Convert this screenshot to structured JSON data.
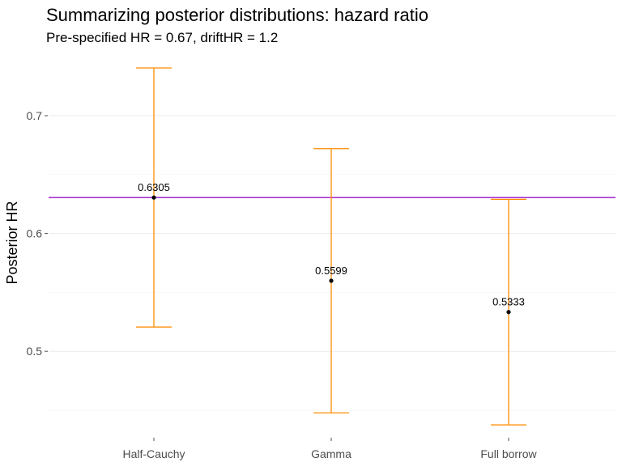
{
  "chart_data": {
    "type": "errorbar",
    "title": "Summarizing posterior distributions: hazard ratio",
    "subtitle": "Pre-specified HR = 0.67, driftHR = 1.2",
    "xlabel": "",
    "ylabel": "Posterior HR",
    "categories": [
      "Half-Cauchy",
      "Gamma",
      "Full borrow"
    ],
    "series": [
      {
        "values": [
          0.6305,
          0.5599,
          0.5333
        ],
        "lower": [
          0.5206,
          0.4477,
          0.4375
        ],
        "upper": [
          0.7405,
          0.672,
          0.629
        ],
        "value_labels": [
          "0.6305",
          "0.5599",
          "0.5333"
        ]
      }
    ],
    "reference_line": {
      "y": 0.6305
    },
    "yticks": [
      0.5,
      0.6,
      0.7
    ],
    "ytick_labels": [
      "0.5",
      "0.6",
      "0.7"
    ],
    "ylim": [
      0.425,
      0.75
    ],
    "grid": "horizontal",
    "colors": {
      "errorbar": "#ff8c00",
      "reference_line": "#9a10c9",
      "point": "#000000",
      "grid": "#ebebeb"
    }
  }
}
